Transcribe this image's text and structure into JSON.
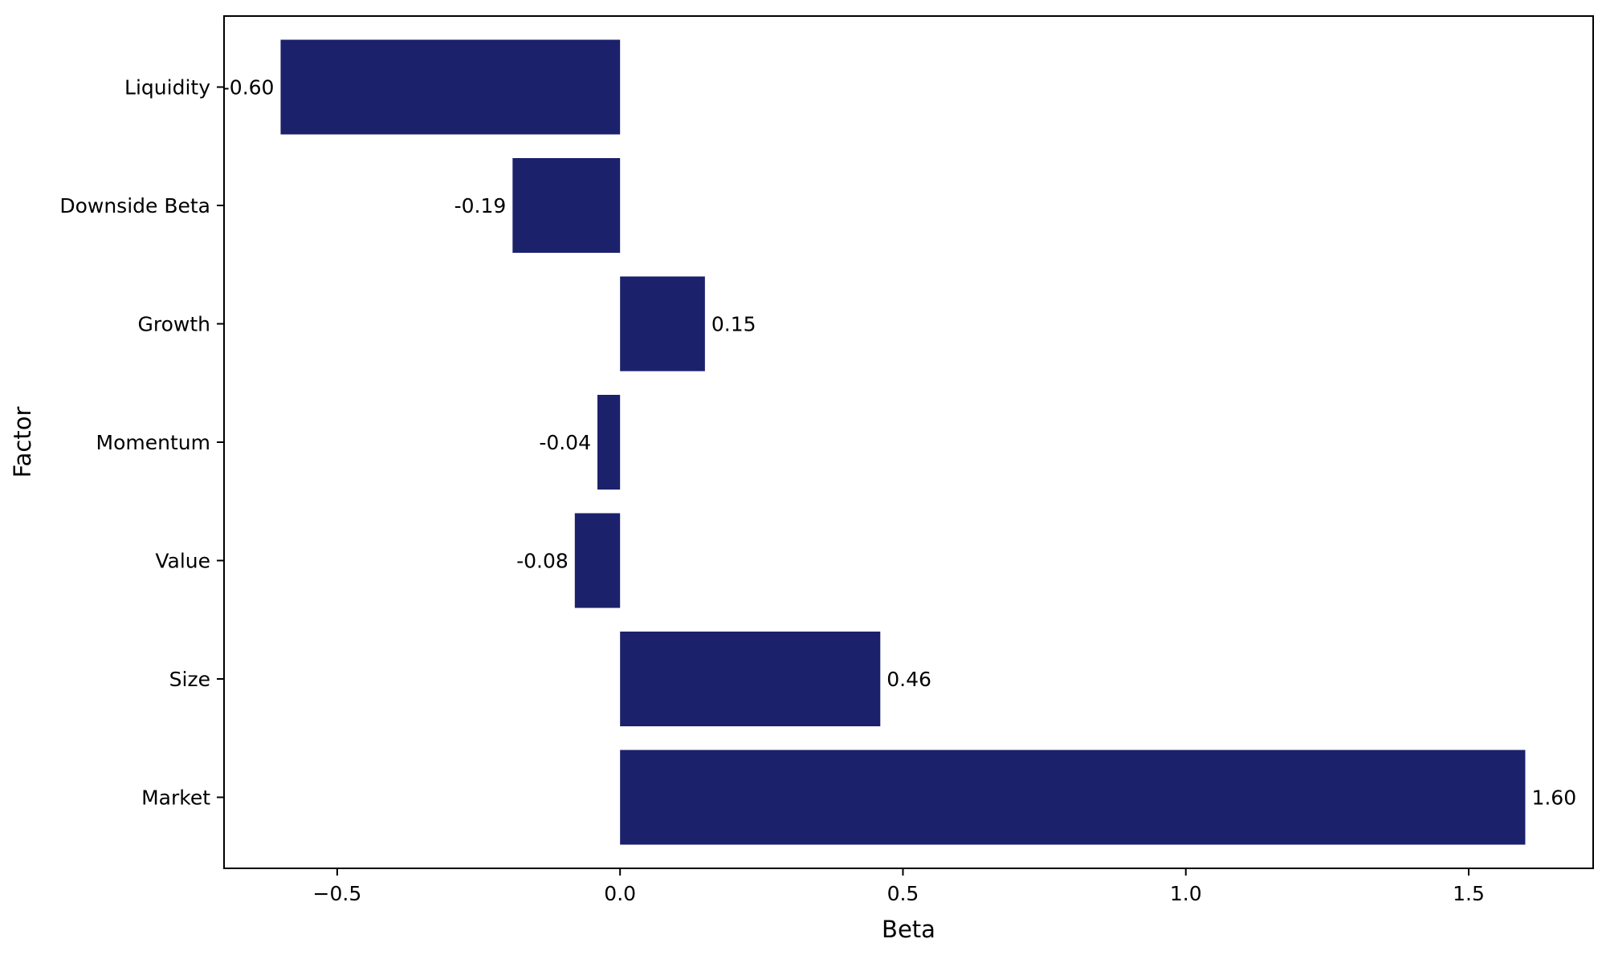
{
  "chart_data": {
    "type": "bar",
    "orientation": "horizontal",
    "title": "",
    "xlabel": "Beta",
    "ylabel": "Factor",
    "categories": [
      "Market",
      "Size",
      "Value",
      "Momentum",
      "Growth",
      "Downside Beta",
      "Liquidity"
    ],
    "values": [
      1.6,
      0.46,
      -0.08,
      -0.04,
      0.15,
      -0.19,
      -0.6
    ],
    "value_labels": [
      "1.60",
      "0.46",
      "-0.08",
      "-0.04",
      "0.15",
      "-0.19",
      "-0.60"
    ],
    "xlim": [
      -0.7,
      1.72
    ],
    "xticks": [
      -0.5,
      0.0,
      0.5,
      1.0,
      1.5
    ],
    "xtick_labels": [
      "−0.5",
      "0.0",
      "0.5",
      "1.0",
      "1.5"
    ],
    "grid": false,
    "legend": "none",
    "bar_color": "#1b216b"
  }
}
